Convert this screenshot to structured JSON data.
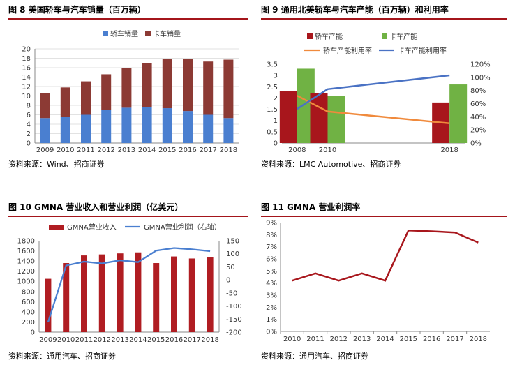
{
  "chart_data": [
    {
      "id": "c8",
      "type": "bar",
      "stacked": true,
      "title": "图 8 美国轿车与汽车销量（百万辆）",
      "source": "资料来源：Wind、招商证券",
      "categories": [
        "2009",
        "2010",
        "2011",
        "2012",
        "2013",
        "2014",
        "2015",
        "2016",
        "2017",
        "2018"
      ],
      "series": [
        {
          "name": "轿车销量",
          "color": "#4a7fd0",
          "values": [
            5.3,
            5.5,
            6.0,
            7.1,
            7.5,
            7.6,
            7.4,
            6.8,
            6.0,
            5.3
          ]
        },
        {
          "name": "卡车销量",
          "color": "#8c3a34",
          "values": [
            5.3,
            6.3,
            7.1,
            7.5,
            8.4,
            9.3,
            10.5,
            11.1,
            11.3,
            12.4
          ]
        }
      ],
      "ylim": [
        0,
        20
      ],
      "yticks": [
        0,
        2,
        4,
        6,
        8,
        10,
        12,
        14,
        16,
        18,
        20
      ],
      "legend": "top"
    },
    {
      "id": "c9",
      "type": "bar",
      "title": "图 9 通用北美轿车与汽车产能（百万辆）和利用率",
      "source": "资料来源：LMC Automotive、招商证券",
      "categories": [
        "2008",
        "2010",
        "2018"
      ],
      "x_positions": [
        2008,
        2010,
        2018
      ],
      "series": [
        {
          "name": "轿车产能",
          "kind": "bar",
          "color": "#a8161c",
          "values": [
            2.3,
            2.2,
            1.8
          ]
        },
        {
          "name": "卡车产能",
          "kind": "bar",
          "color": "#70b244",
          "values": [
            3.3,
            2.1,
            2.6
          ]
        },
        {
          "name": "轿车产能利用率",
          "kind": "line",
          "axis": "right",
          "color": "#f08a3c",
          "values": [
            72,
            48,
            30
          ]
        },
        {
          "name": "卡车产能利用率",
          "kind": "line",
          "axis": "right",
          "color": "#4a72c4",
          "values": [
            52,
            82,
            103
          ]
        }
      ],
      "ylim": [
        0,
        3.5
      ],
      "yticks": [
        "0",
        "0.5",
        "1",
        "1.5",
        "2",
        "2.5",
        "3",
        "3.5"
      ],
      "y2lim": [
        0,
        120
      ],
      "y2ticks": [
        "0%",
        "20%",
        "40%",
        "60%",
        "80%",
        "100%",
        "120%"
      ],
      "legend": "top"
    },
    {
      "id": "c10",
      "type": "bar",
      "title": "图 10 GMNA 营业收入和营业利润（亿美元）",
      "source": "资料来源：通用汽车、招商证券",
      "categories": [
        "2009",
        "2010",
        "2011",
        "2012",
        "2013",
        "2014",
        "2015",
        "2016",
        "2017",
        "2018"
      ],
      "series": [
        {
          "name": "GMNA营业收入",
          "kind": "bar",
          "color": "#b01d22",
          "values": [
            1050,
            1360,
            1510,
            1530,
            1550,
            1570,
            1360,
            1490,
            1450,
            1470
          ]
        },
        {
          "name": "GMNA营业利润（右轴）",
          "kind": "line",
          "axis": "right",
          "color": "#4a7fd0",
          "values": [
            -162,
            55,
            70,
            63,
            75,
            68,
            112,
            122,
            117,
            110
          ]
        }
      ],
      "ylim": [
        0,
        1800
      ],
      "yticks": [
        0,
        200,
        400,
        600,
        800,
        1000,
        1200,
        1400,
        1600,
        1800
      ],
      "y2lim": [
        -200,
        150
      ],
      "y2ticks": [
        -200,
        -150,
        -100,
        -50,
        0,
        50,
        100,
        150
      ],
      "legend": "top"
    },
    {
      "id": "c11",
      "type": "line",
      "title": "图 11 GMNA 营业利润率",
      "source": "资料来源：通用汽车、招商证券",
      "categories": [
        "2010",
        "2011",
        "2012",
        "2013",
        "2014",
        "2015",
        "2016",
        "2017",
        "2018"
      ],
      "series": [
        {
          "name": "",
          "color": "#a8161c",
          "values": [
            4.2,
            4.8,
            4.2,
            4.8,
            4.2,
            8.35,
            8.28,
            8.18,
            7.35
          ]
        }
      ],
      "ylim": [
        0,
        9
      ],
      "yticks": [
        "0%",
        "1%",
        "2%",
        "3%",
        "4%",
        "5%",
        "6%",
        "7%",
        "8%",
        "9%"
      ],
      "grid": false
    }
  ]
}
